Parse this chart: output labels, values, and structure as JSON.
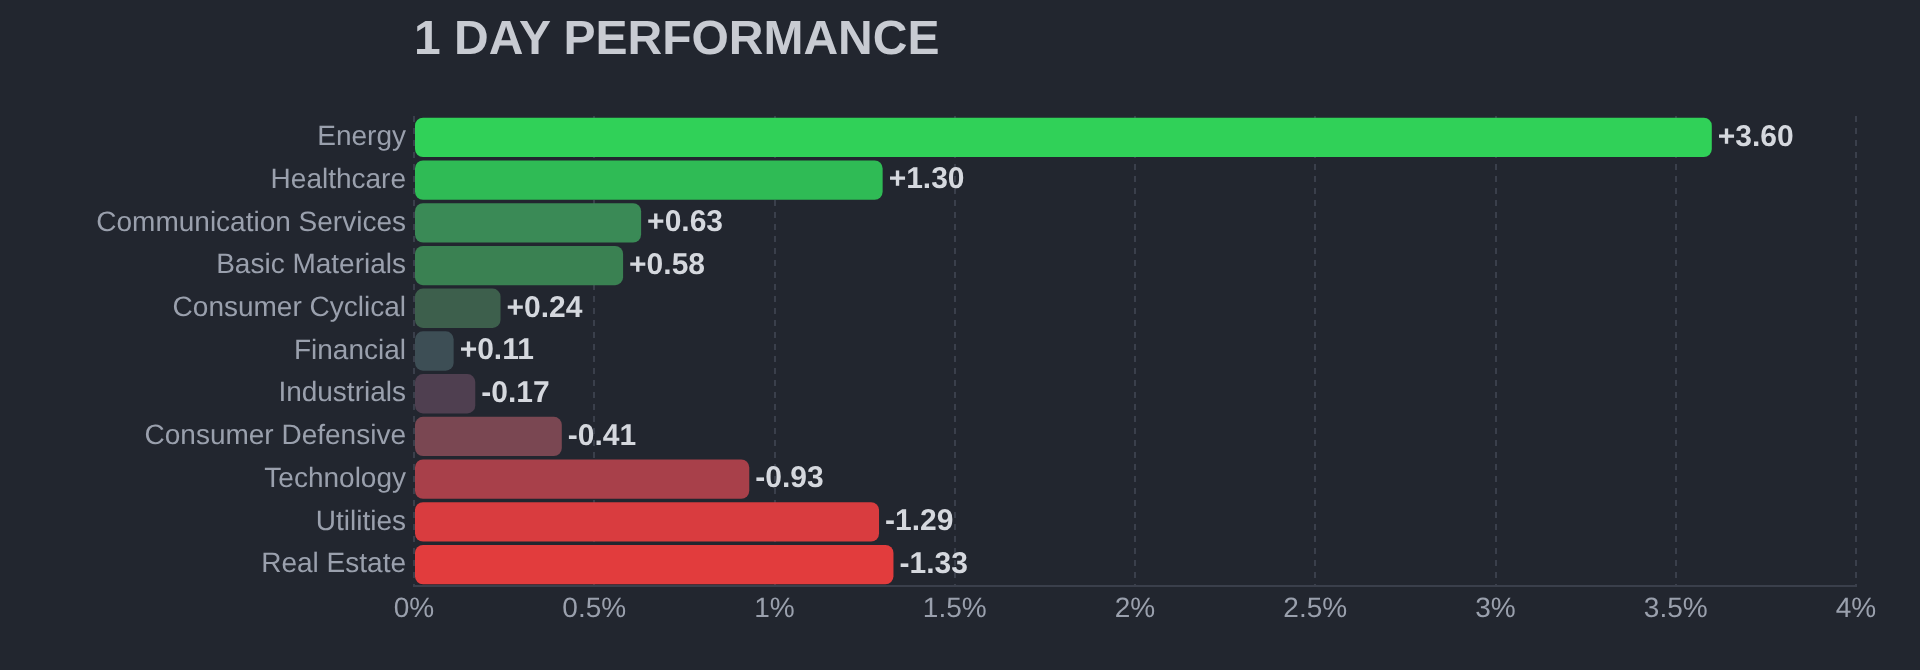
{
  "chart_data": {
    "type": "bar",
    "orientation": "horizontal",
    "title": "1 DAY PERFORMANCE",
    "categories": [
      "Energy",
      "Healthcare",
      "Communication Services",
      "Basic Materials",
      "Consumer Cyclical",
      "Financial",
      "Industrials",
      "Consumer Defensive",
      "Technology",
      "Utilities",
      "Real Estate"
    ],
    "values": [
      3.6,
      1.3,
      0.63,
      0.58,
      0.24,
      0.11,
      -0.17,
      -0.41,
      -0.93,
      -1.29,
      -1.33
    ],
    "base": [
      0,
      0,
      0,
      0,
      0,
      0,
      0.17,
      0.41,
      0.93,
      1.29,
      1.33
    ],
    "value_labels": [
      "+3.60",
      "+1.30",
      "+0.63",
      "+0.58",
      "+0.24",
      "+0.11",
      "-0.17",
      "-0.41",
      "-0.93",
      "-1.29",
      "-1.33"
    ],
    "colors": [
      "#30d158",
      "#2fbb55",
      "#3a8a56",
      "#3a8152",
      "#3d5f4c",
      "#3d4e55",
      "#4f3f50",
      "#7a4752",
      "#a8404a",
      "#d93c3f",
      "#e23c3d"
    ],
    "xlim": [
      0,
      4
    ],
    "xticks": [
      {
        "value": 0,
        "label": "0%"
      },
      {
        "value": 0.5,
        "label": "0.5%"
      },
      {
        "value": 1,
        "label": "1%"
      },
      {
        "value": 1.5,
        "label": "1.5%"
      },
      {
        "value": 2,
        "label": "2%"
      },
      {
        "value": 2.5,
        "label": "2.5%"
      },
      {
        "value": 3,
        "label": "3%"
      },
      {
        "value": 3.5,
        "label": "3.5%"
      },
      {
        "value": 4,
        "label": "4%"
      }
    ],
    "grid": "x",
    "legend": false
  }
}
